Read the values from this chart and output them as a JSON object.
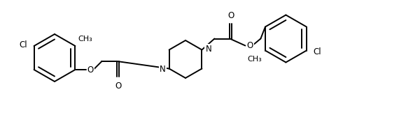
{
  "line_color": "#000000",
  "bg_color": "#ffffff",
  "lw": 1.4,
  "fs": 8.5,
  "figsize": [
    5.8,
    1.78
  ],
  "dpi": 100,
  "xlim": [
    0,
    580
  ],
  "ylim": [
    0,
    178
  ]
}
